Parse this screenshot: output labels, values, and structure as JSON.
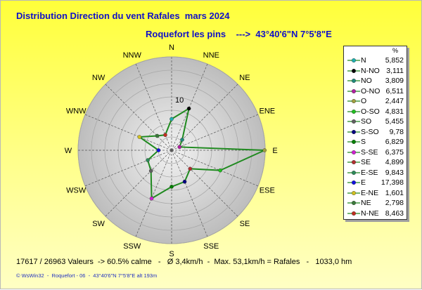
{
  "header": {
    "title": "Distribution Direction du vent Rafales  mars 2024",
    "subtitle": "Roquefort les pins    --->  43°40'6\"N 7°5'8\"E"
  },
  "chart_data": {
    "type": "radar",
    "scale_label": "10",
    "rmax": 17.5,
    "grid_rings": [
      2.5,
      5,
      7.5,
      10,
      12.5,
      15,
      17.5
    ],
    "directions": [
      "N",
      "NNE",
      "NE",
      "ENE",
      "E",
      "ESE",
      "SE",
      "SSE",
      "S",
      "SSW",
      "SW",
      "WSW",
      "W",
      "WNW",
      "NW",
      "NNW"
    ],
    "values": [
      5.852,
      8.463,
      2.798,
      1.601,
      17.398,
      9.843,
      4.899,
      6.375,
      6.829,
      9.78,
      5.455,
      4.831,
      2.447,
      6.511,
      3.809,
      3.111
    ],
    "line_color": "#208a20",
    "marker_colors": [
      "#20b0b0",
      "#000000",
      "#208a7a",
      "#b020a0",
      "#a0a040",
      "#20c020",
      "#b03030",
      "#000080",
      "#008000",
      "#d020d0",
      "#606060",
      "#2d8a5a",
      "#1010e0",
      "#d0c020",
      "#3a7a3a",
      "#c03020"
    ]
  },
  "legend": {
    "header": "%",
    "items": [
      {
        "name": "N",
        "value": "5,852",
        "color": "#20b0b0"
      },
      {
        "name": "N-NO",
        "value": "3,111",
        "color": "#000000"
      },
      {
        "name": "NO",
        "value": "3,809",
        "color": "#208a7a"
      },
      {
        "name": "O-NO",
        "value": "6,511",
        "color": "#b020a0"
      },
      {
        "name": "O",
        "value": "2,447",
        "color": "#a0a040"
      },
      {
        "name": "O-SO",
        "value": "4,831",
        "color": "#20c020"
      },
      {
        "name": "SO",
        "value": "5,455",
        "color": "#606060"
      },
      {
        "name": "S-SO",
        "value": "9,78",
        "color": "#000080"
      },
      {
        "name": "S",
        "value": "6,829",
        "color": "#008000"
      },
      {
        "name": "S-SE",
        "value": "6,375",
        "color": "#d020d0"
      },
      {
        "name": "SE",
        "value": "4,899",
        "color": "#b03030"
      },
      {
        "name": "E-SE",
        "value": "9,843",
        "color": "#2d8a5a"
      },
      {
        "name": "E",
        "value": "17,398",
        "color": "#1010e0"
      },
      {
        "name": "E-NE",
        "value": "1,601",
        "color": "#d0c020"
      },
      {
        "name": "NE",
        "value": "2,798",
        "color": "#3a7a3a"
      },
      {
        "name": "N-NE",
        "value": "8,463",
        "color": "#c03020"
      }
    ]
  },
  "footer": {
    "stats": "17617 / 26963 Valeurs  -> 60.5% calme   -   Ø 3,4km/h  -  Max. 53,1km/h = Rafales   -   1033,0 hm",
    "credit": "© WsWin32  -  Roquefort - 06  -  43°40'6\"N 7°5'8\"E alt 193m"
  }
}
